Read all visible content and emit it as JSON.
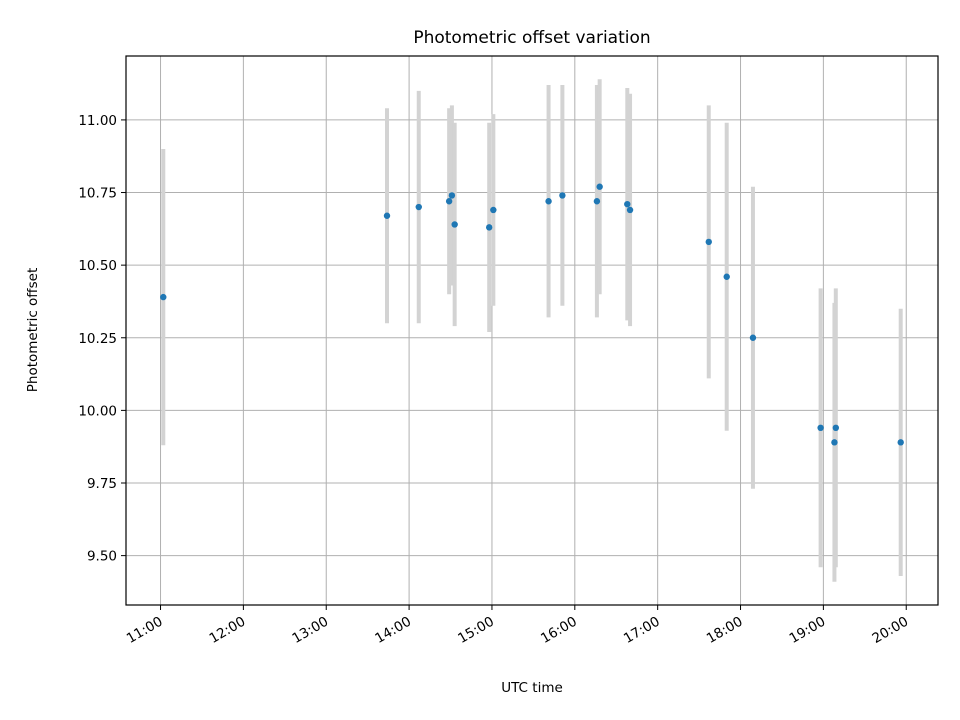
{
  "chart_data": {
    "type": "scatter",
    "title": "Photometric offset variation",
    "xlabel": "UTC time",
    "ylabel": "Photometric offset",
    "x_ticks": [
      "11:00",
      "12:00",
      "13:00",
      "14:00",
      "15:00",
      "16:00",
      "17:00",
      "18:00",
      "19:00",
      "20:00"
    ],
    "y_ticks": [
      "9.50",
      "9.75",
      "10.00",
      "10.25",
      "10.50",
      "10.75",
      "11.00"
    ],
    "xlim": [
      "10:35",
      "20:23"
    ],
    "ylim": [
      9.33,
      11.22
    ],
    "grid": true,
    "colors": {
      "points": "#1f77b4",
      "error_bars": "#d3d3d3",
      "grid": "#b0b0b0"
    },
    "series": [
      {
        "points": [
          {
            "x": "11:02",
            "y": 10.39,
            "err": 0.51
          },
          {
            "x": "13:44",
            "y": 10.67,
            "err": 0.37
          },
          {
            "x": "14:07",
            "y": 10.7,
            "err": 0.4
          },
          {
            "x": "14:29",
            "y": 10.72,
            "err": 0.32
          },
          {
            "x": "14:31",
            "y": 10.74,
            "err": 0.31
          },
          {
            "x": "14:33",
            "y": 10.64,
            "err": 0.35
          },
          {
            "x": "14:58",
            "y": 10.63,
            "err": 0.36
          },
          {
            "x": "15:01",
            "y": 10.69,
            "err": 0.33
          },
          {
            "x": "15:41",
            "y": 10.72,
            "err": 0.4
          },
          {
            "x": "15:51",
            "y": 10.74,
            "err": 0.38
          },
          {
            "x": "16:16",
            "y": 10.72,
            "err": 0.4
          },
          {
            "x": "16:18",
            "y": 10.77,
            "err": 0.37
          },
          {
            "x": "16:38",
            "y": 10.71,
            "err": 0.4
          },
          {
            "x": "16:40",
            "y": 10.69,
            "err": 0.4
          },
          {
            "x": "17:37",
            "y": 10.58,
            "err": 0.47
          },
          {
            "x": "17:50",
            "y": 10.46,
            "err": 0.53
          },
          {
            "x": "18:09",
            "y": 10.25,
            "err": 0.52
          },
          {
            "x": "18:58",
            "y": 9.94,
            "err": 0.48
          },
          {
            "x": "19:08",
            "y": 9.89,
            "err": 0.48
          },
          {
            "x": "19:09",
            "y": 9.94,
            "err": 0.48
          },
          {
            "x": "19:56",
            "y": 9.89,
            "err": 0.46
          }
        ]
      }
    ]
  }
}
